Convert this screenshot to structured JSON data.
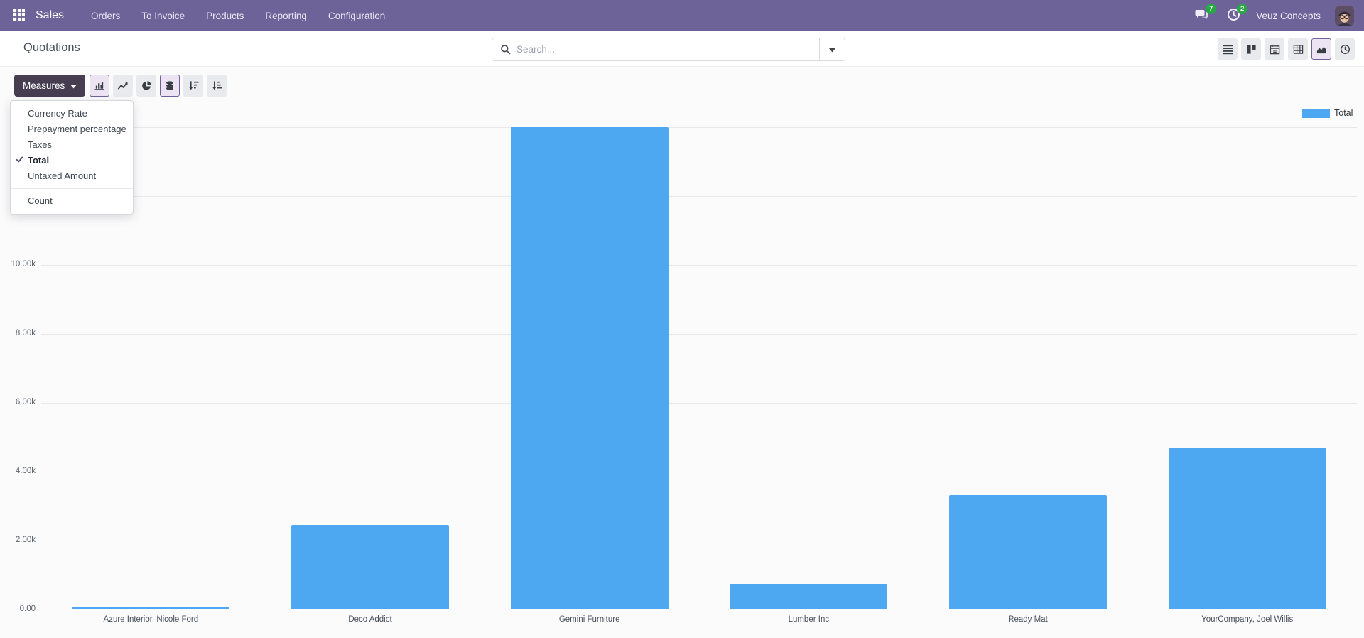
{
  "navbar": {
    "app_name": "Sales",
    "menu_items": [
      {
        "label": "Orders"
      },
      {
        "label": "To Invoice"
      },
      {
        "label": "Products"
      },
      {
        "label": "Reporting"
      },
      {
        "label": "Configuration"
      }
    ],
    "messages_badge": "7",
    "activities_badge": "2",
    "company": "Veuz Concepts",
    "bg_color": "#6e6399"
  },
  "control_panel": {
    "breadcrumb": "Quotations",
    "search_placeholder": "Search...",
    "view_switcher": [
      {
        "name": "list",
        "active": false
      },
      {
        "name": "kanban",
        "active": false
      },
      {
        "name": "calendar",
        "active": false
      },
      {
        "name": "pivot",
        "active": false
      },
      {
        "name": "graph",
        "active": true
      },
      {
        "name": "activity",
        "active": false
      }
    ]
  },
  "toolbar": {
    "measures_label": "Measures",
    "chart_buttons": [
      {
        "name": "bar-chart",
        "active": true
      },
      {
        "name": "line-chart",
        "active": false
      },
      {
        "name": "pie-chart",
        "active": false
      },
      {
        "name": "stacked",
        "active": true
      },
      {
        "name": "sort-desc",
        "active": false
      },
      {
        "name": "sort-asc",
        "active": false
      }
    ]
  },
  "measures_menu": {
    "items": [
      {
        "label": "Currency Rate",
        "checked": false
      },
      {
        "label": "Prepayment percentage",
        "checked": false
      },
      {
        "label": "Taxes",
        "checked": false
      },
      {
        "label": "Total",
        "checked": true
      },
      {
        "label": "Untaxed Amount",
        "checked": false
      }
    ],
    "footer_items": [
      {
        "label": "Count",
        "checked": false
      }
    ]
  },
  "chart_data": {
    "type": "bar",
    "title": "",
    "categories": [
      "Azure Interior, Nicole Ford",
      "Deco Addict",
      "Gemini Furniture",
      "Lumber Inc",
      "Ready Mat",
      "YourCompany, Joel Willis"
    ],
    "series": [
      {
        "name": "Total",
        "values": [
          70,
          2440,
          13980,
          725,
          3315,
          4670
        ]
      }
    ],
    "bar_color": "#4EA7F1",
    "xlabel": "",
    "ylabel": "",
    "ylim": [
      0,
      14000
    ],
    "ytick_step": 2000,
    "ytick_labels": [
      "0.00",
      "2.00k",
      "4.00k",
      "6.00k",
      "8.00k",
      "10.00k",
      "12.00k",
      "14.00k"
    ],
    "grid": true,
    "legend": {
      "position": "top-right",
      "entries": [
        {
          "label": "Total",
          "color": "#4EA7F1"
        }
      ]
    }
  }
}
